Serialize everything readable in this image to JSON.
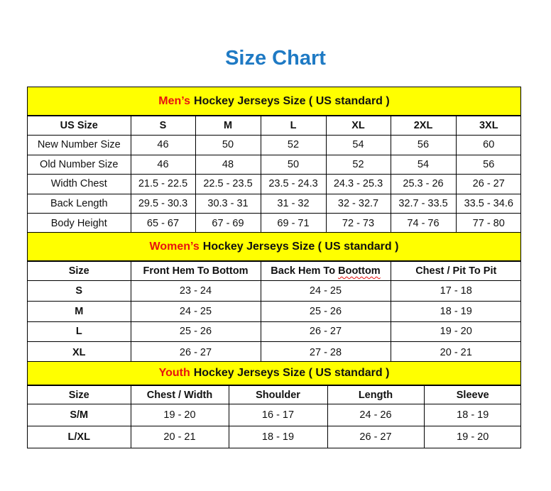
{
  "title": "Size Chart",
  "sections": [
    {
      "highlight": "Men’s",
      "heading": "Hockey Jerseys Size ( US standard )",
      "header": [
        "US Size",
        "S",
        "M",
        "L",
        "XL",
        "2XL",
        "3XL"
      ],
      "rows": [
        [
          "New Number Size",
          "46",
          "50",
          "52",
          "54",
          "56",
          "60"
        ],
        [
          "Old Number Size",
          "46",
          "48",
          "50",
          "52",
          "54",
          "56"
        ],
        [
          "Width Chest",
          "21.5 - 22.5",
          "22.5 - 23.5",
          "23.5 - 24.3",
          "24.3 - 25.3",
          "25.3 - 26",
          "26 - 27"
        ],
        [
          "Back Length",
          "29.5 - 30.3",
          "30.3 - 31",
          "31 - 32",
          "32 - 32.7",
          "32.7 - 33.5",
          "33.5 - 34.6"
        ],
        [
          "Body Height",
          "65 - 67",
          "67 - 69",
          "69 - 71",
          "72 - 73",
          "74 - 76",
          "77 - 80"
        ]
      ]
    },
    {
      "highlight": "Women’s",
      "heading": "Hockey Jerseys Size ( US standard )",
      "header": [
        "Size",
        "Front Hem To Bottom",
        "Back Hem To Boottom",
        "Chest / Pit To Pit"
      ],
      "rows": [
        [
          "S",
          "23 - 24",
          "24 - 25",
          "17 - 18"
        ],
        [
          "M",
          "24 - 25",
          "25 - 26",
          "18 - 19"
        ],
        [
          "L",
          "25 - 26",
          "26 - 27",
          "19 - 20"
        ],
        [
          "XL",
          "26 - 27",
          "27 - 28",
          "20 - 21"
        ]
      ]
    },
    {
      "highlight": "Youth",
      "heading": "Hockey Jerseys Size ( US standard )",
      "header": [
        "Size",
        "Chest / Width",
        "Shoulder",
        "Length",
        "Sleeve"
      ],
      "rows": [
        [
          "S/M",
          "19 - 20",
          "16 - 17",
          "24 - 26",
          "18 - 19"
        ],
        [
          "L/XL",
          "20 - 21",
          "18 - 19",
          "26 - 27",
          "19 - 20"
        ]
      ]
    }
  ],
  "colors": {
    "title": "#1f7ac4",
    "band": "#ffff00",
    "highlight": "#e8120f"
  }
}
